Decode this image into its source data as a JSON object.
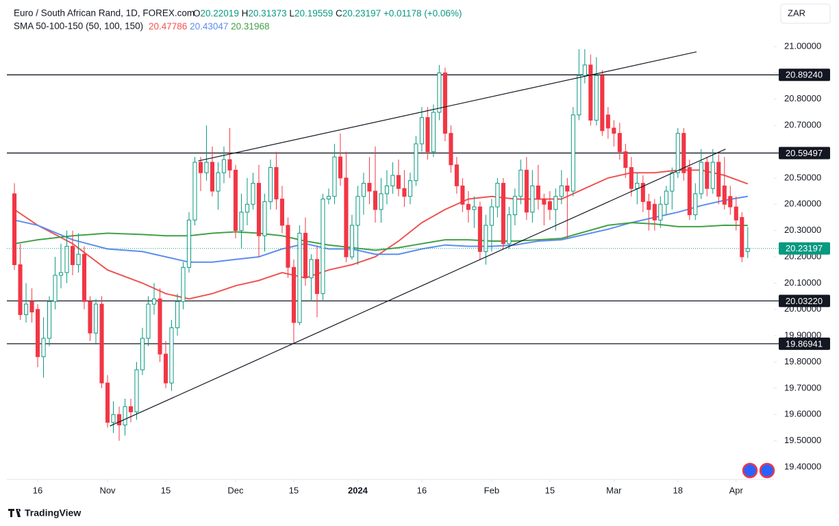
{
  "chart_data": {
    "type": "candlestick",
    "title": "Euro / South African Rand, 1D, FOREX.com",
    "ohlc_labels": [
      "O",
      "H",
      "L",
      "C"
    ],
    "change": "+0.01178 (+0.06%)",
    "indicator": "SMA 50-100-150 (50, 100, 150)",
    "currency": "ZAR",
    "brand": "TradingView",
    "up_color": "#089981",
    "down_color": "#f23645",
    "xlim": [
      -1.3,
      130.5
    ],
    "ylim": [
      19.353,
      21.06
    ],
    "xticks": [
      {
        "value": 4,
        "label": "16"
      },
      {
        "value": 16,
        "label": "Nov"
      },
      {
        "value": 26,
        "label": "15"
      },
      {
        "value": 38,
        "label": "Dec"
      },
      {
        "value": 48,
        "label": "15"
      },
      {
        "value": 59,
        "label": "2024"
      },
      {
        "value": 70,
        "label": "16"
      },
      {
        "value": 82,
        "label": "Feb"
      },
      {
        "value": 92,
        "label": "15"
      },
      {
        "value": 103,
        "label": "Mar"
      },
      {
        "value": 114,
        "label": "18"
      },
      {
        "value": 124,
        "label": "Apr"
      }
    ],
    "yticks": [
      {
        "value": 19.4,
        "label": "19.40000"
      },
      {
        "value": 19.5,
        "label": "19.50000"
      },
      {
        "value": 19.6,
        "label": "19.60000"
      },
      {
        "value": 19.7,
        "label": "19.70000"
      },
      {
        "value": 19.8,
        "label": "19.80000"
      },
      {
        "value": 19.9,
        "label": "19.90000"
      },
      {
        "value": 20.0,
        "label": "20.00000"
      },
      {
        "value": 20.1,
        "label": "20.10000"
      },
      {
        "value": 20.2,
        "label": "20.20000"
      },
      {
        "value": 20.3,
        "label": "20.30000"
      },
      {
        "value": 20.4,
        "label": "20.40000"
      },
      {
        "value": 20.5,
        "label": "20.50000"
      },
      {
        "value": 20.6,
        "label": "20.60000"
      },
      {
        "value": 20.7,
        "label": "20.70000"
      },
      {
        "value": 20.8,
        "label": "20.80000"
      },
      {
        "value": 20.9,
        "label": "20.90000"
      },
      {
        "value": 21.0,
        "label": "21.00000"
      }
    ],
    "open": [
      20.44,
      20.17,
      19.98,
      20.03,
      20.0,
      19.82,
      19.89,
      20.03,
      20.13,
      20.14,
      20.24,
      20.17,
      20.21,
      20.03,
      19.91,
      20.02,
      19.72,
      19.57,
      19.6,
      19.56,
      19.63,
      19.61,
      19.77,
      19.89,
      20.02,
      20.04,
      19.83,
      19.72,
      19.93,
      20.03,
      20.16,
      20.34,
      20.56,
      20.52,
      20.56,
      20.45,
      20.52,
      20.57,
      20.53,
      20.3,
      20.37,
      20.4,
      20.48,
      20.28,
      20.41,
      20.54,
      20.42,
      20.32,
      20.16,
      19.95,
      20.29,
      20.12,
      20.19,
      20.06,
      20.42,
      20.43,
      20.58,
      20.5,
      20.2,
      20.32,
      20.43,
      20.48,
      20.45,
      20.38,
      20.44,
      20.47,
      20.51,
      20.46,
      20.43,
      20.49,
      20.63,
      20.73,
      20.6,
      20.75,
      20.9,
      20.67,
      20.55,
      20.47,
      20.4,
      20.38,
      20.39,
      20.22,
      20.32,
      20.39,
      20.48,
      20.25,
      20.36,
      20.43,
      20.53,
      20.37,
      20.47,
      20.42,
      20.41,
      20.38,
      20.43,
      20.47,
      20.45,
      20.74,
      20.89,
      20.93,
      20.72,
      20.89,
      20.74,
      20.69,
      20.67,
      20.6,
      20.54,
      20.46,
      20.48,
      20.41,
      20.4,
      20.34,
      20.4,
      20.45,
      20.52,
      20.67,
      20.54,
      20.36,
      20.44,
      20.56,
      20.46,
      20.56,
      20.47,
      20.43,
      20.39,
      20.35,
      20.22019
    ],
    "high": [
      20.48,
      20.25,
      20.1,
      20.08,
      20.02,
      19.97,
      20.05,
      20.2,
      20.25,
      20.3,
      20.3,
      20.29,
      20.24,
      20.05,
      20.04,
      20.05,
      19.75,
      19.65,
      19.63,
      19.66,
      19.66,
      19.8,
      19.93,
      20.05,
      20.1,
      20.08,
      19.88,
      19.96,
      20.06,
      20.18,
      20.37,
      20.58,
      20.58,
      20.7,
      20.62,
      20.56,
      20.62,
      20.69,
      20.55,
      20.44,
      20.5,
      20.52,
      20.55,
      20.44,
      20.57,
      20.6,
      20.47,
      20.35,
      20.19,
      20.32,
      20.35,
      20.21,
      20.24,
      20.44,
      20.46,
      20.63,
      20.67,
      20.6,
      20.36,
      20.47,
      20.52,
      20.58,
      20.62,
      20.5,
      20.53,
      20.56,
      20.57,
      20.53,
      20.52,
      20.66,
      20.77,
      20.77,
      20.78,
      20.93,
      20.92,
      20.7,
      20.58,
      20.5,
      20.45,
      20.43,
      20.41,
      20.36,
      20.42,
      20.5,
      20.5,
      20.39,
      20.46,
      20.57,
      20.58,
      20.53,
      20.55,
      20.44,
      20.45,
      20.46,
      20.53,
      20.5,
      20.77,
      20.99,
      20.99,
      20.97,
      20.96,
      20.91,
      20.77,
      20.72,
      20.71,
      20.63,
      20.58,
      20.52,
      20.51,
      20.44,
      20.42,
      20.43,
      20.47,
      20.54,
      20.69,
      20.69,
      20.57,
      20.48,
      20.61,
      20.58,
      20.61,
      20.59,
      20.58,
      20.47,
      20.43,
      20.37,
      20.31373
    ],
    "low": [
      20.15,
      19.96,
      19.95,
      19.95,
      19.78,
      19.74,
      19.86,
      20.0,
      20.08,
      20.1,
      20.13,
      20.14,
      20.0,
      19.88,
      19.87,
      19.7,
      19.55,
      19.53,
      19.5,
      19.52,
      19.57,
      19.58,
      19.75,
      19.86,
      19.98,
      19.8,
      19.7,
      19.69,
      19.9,
      20.0,
      20.14,
      20.32,
      20.45,
      20.49,
      20.43,
      20.38,
      20.48,
      20.5,
      20.27,
      20.23,
      20.32,
      20.38,
      20.2,
      20.22,
      20.38,
      20.38,
      20.29,
      20.12,
      19.87,
      19.94,
      20.09,
      20.03,
      19.97,
      20.03,
      20.4,
      20.4,
      20.47,
      20.18,
      20.19,
      20.17,
      20.36,
      20.4,
      20.33,
      20.33,
      20.4,
      20.44,
      20.43,
      20.39,
      20.4,
      20.47,
      20.6,
      20.57,
      20.58,
      20.72,
      20.64,
      20.52,
      20.44,
      20.37,
      20.33,
      20.31,
      20.19,
      20.17,
      20.22,
      20.35,
      20.23,
      20.23,
      20.32,
      20.4,
      20.34,
      20.33,
      20.38,
      20.32,
      20.34,
      20.3,
      20.4,
      20.27,
      20.43,
      20.72,
      20.86,
      20.7,
      20.7,
      20.66,
      20.65,
      20.62,
      20.57,
      20.5,
      20.43,
      20.4,
      20.37,
      20.3,
      20.3,
      20.31,
      20.36,
      20.38,
      20.5,
      20.49,
      20.34,
      20.34,
      20.42,
      20.43,
      20.44,
      20.4,
      20.38,
      20.36,
      20.3,
      20.18,
      20.19559
    ],
    "close": [
      20.17,
      19.98,
      20.02,
      19.99,
      19.82,
      19.89,
      20.03,
      20.13,
      20.14,
      20.24,
      20.17,
      20.21,
      20.03,
      19.91,
      20.02,
      19.72,
      19.57,
      19.6,
      19.56,
      19.63,
      19.61,
      19.77,
      19.89,
      20.02,
      20.04,
      19.83,
      19.72,
      19.93,
      20.03,
      20.16,
      20.34,
      20.56,
      20.52,
      20.56,
      20.45,
      20.52,
      20.57,
      20.53,
      20.3,
      20.37,
      20.4,
      20.48,
      20.28,
      20.41,
      20.54,
      20.42,
      20.32,
      20.16,
      19.95,
      20.29,
      20.12,
      20.19,
      20.06,
      20.42,
      20.43,
      20.58,
      20.5,
      20.2,
      20.32,
      20.43,
      20.48,
      20.45,
      20.38,
      20.44,
      20.47,
      20.51,
      20.46,
      20.43,
      20.49,
      20.63,
      20.73,
      20.6,
      20.75,
      20.9,
      20.67,
      20.55,
      20.47,
      20.4,
      20.38,
      20.39,
      20.22,
      20.32,
      20.39,
      20.48,
      20.25,
      20.36,
      20.43,
      20.53,
      20.37,
      20.47,
      20.42,
      20.4,
      20.38,
      20.43,
      20.47,
      20.45,
      20.74,
      20.89,
      20.93,
      20.72,
      20.89,
      20.68,
      20.69,
      20.67,
      20.6,
      20.54,
      20.46,
      20.48,
      20.41,
      20.38,
      20.34,
      20.4,
      20.45,
      20.52,
      20.67,
      20.52,
      20.36,
      20.44,
      20.56,
      20.46,
      20.56,
      20.43,
      20.4,
      20.39,
      20.34,
      20.2,
      20.23197
    ],
    "sma": [
      {
        "color": "#ef5350",
        "x": [
          0,
          4,
          10,
          16,
          22,
          26,
          30,
          34,
          38,
          42,
          46,
          50,
          54,
          58,
          62,
          66,
          70,
          74,
          78,
          82,
          86,
          90,
          94,
          98,
          102,
          106,
          110,
          114,
          118,
          122,
          126
        ],
        "values": [
          20.38,
          20.32,
          20.25,
          20.15,
          20.1,
          20.06,
          20.04,
          20.06,
          20.09,
          20.11,
          20.14,
          20.12,
          20.15,
          20.17,
          20.2,
          20.26,
          20.33,
          20.38,
          20.42,
          20.43,
          20.42,
          20.42,
          20.42,
          20.46,
          20.5,
          20.52,
          20.52,
          20.53,
          20.53,
          20.51,
          20.47786
        ]
      },
      {
        "color": "#5b8def",
        "x": [
          0,
          4,
          10,
          16,
          22,
          26,
          30,
          34,
          38,
          42,
          46,
          50,
          54,
          58,
          62,
          66,
          70,
          74,
          78,
          82,
          86,
          90,
          94,
          98,
          102,
          106,
          110,
          114,
          118,
          122,
          126
        ],
        "values": [
          20.34,
          20.32,
          20.265,
          20.23,
          20.22,
          20.2,
          20.18,
          20.18,
          20.19,
          20.2,
          20.23,
          20.25,
          20.23,
          20.23,
          20.21,
          20.21,
          20.23,
          20.245,
          20.24,
          20.24,
          20.245,
          20.26,
          20.265,
          20.285,
          20.305,
          20.33,
          20.35,
          20.37,
          20.395,
          20.415,
          20.43047
        ]
      },
      {
        "color": "#43a047",
        "x": [
          0,
          4,
          10,
          16,
          22,
          26,
          30,
          34,
          38,
          42,
          46,
          50,
          54,
          58,
          62,
          66,
          70,
          74,
          78,
          82,
          86,
          90,
          94,
          98,
          102,
          106,
          110,
          114,
          118,
          122,
          126
        ],
        "values": [
          20.25,
          20.265,
          20.28,
          20.29,
          20.285,
          20.28,
          20.28,
          20.29,
          20.295,
          20.29,
          20.28,
          20.26,
          20.245,
          20.235,
          20.225,
          20.235,
          20.25,
          20.265,
          20.265,
          20.26,
          20.26,
          20.265,
          20.27,
          20.295,
          20.32,
          20.33,
          20.325,
          20.315,
          20.315,
          20.32,
          20.31968
        ]
      }
    ],
    "levels": [
      {
        "value": 20.8924,
        "label": "20.89240"
      },
      {
        "value": 20.59497,
        "label": "20.59497"
      },
      {
        "value": 20.0322,
        "label": "20.03220"
      },
      {
        "value": 19.86941,
        "label": "19.86941"
      }
    ],
    "trendlines": [
      {
        "x": [
          31.6,
          117.2
        ],
        "values": [
          20.565,
          20.98
        ]
      },
      {
        "x": [
          16.4,
          122.2
        ],
        "values": [
          19.556,
          20.61
        ]
      }
    ]
  }
}
